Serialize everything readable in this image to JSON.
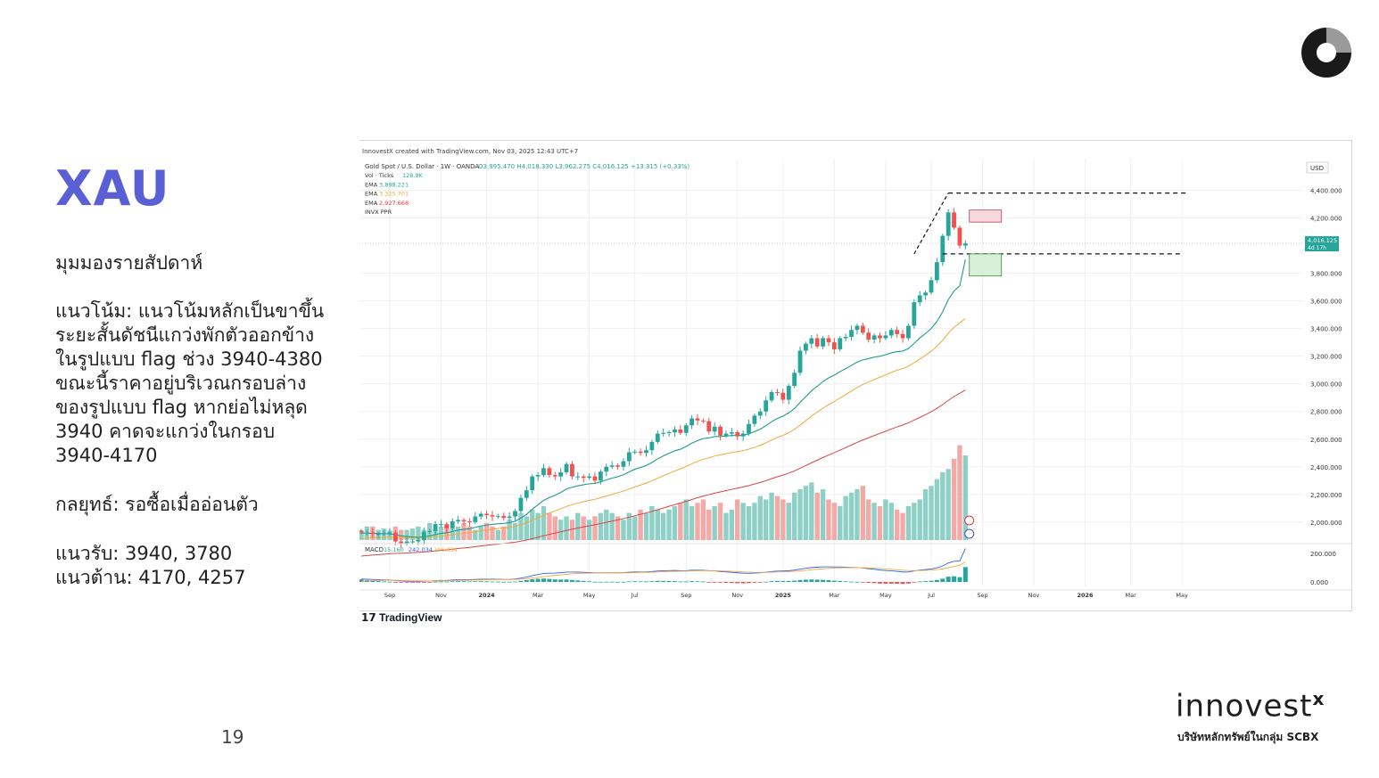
{
  "slide": {
    "title": "XAU",
    "subtitle": "มุมมองรายสัปดาห์",
    "trend_lines": [
      "แนวโน้ม: แนวโน้มหลักเป็นขาขึ้น",
      "ระยะสั้นดัชนีแกว่งพักตัวออกข้าง",
      "ในรูปแบบ flag ช่วง 3940-4380",
      "ขณะนี้ราคาอยู่บริเวณกรอบล่าง",
      "ของรูปแบบ flag หากย่อไม่หลุด",
      "3940 คาดจะแกว่งในกรอบ",
      "3940-4170"
    ],
    "strategy": "กลยุทธ์: รอซื้อเมื่ออ่อนตัว",
    "support": "แนวรับ: 3940, 3780",
    "resistance": "แนวต้าน: 4170, 4257",
    "page_number": "19",
    "brand_name": "innovest",
    "brand_x": "x",
    "brand_sub": "บริษัทหลักทรัพย์ในกลุ่ม SCBX"
  },
  "chart_data": {
    "type": "candlestick",
    "header": "InnovestX created with TradingView.com, Nov 03, 2025 12:43 UTC+7",
    "symbol_line": {
      "name": "Gold Spot / U.S. Dollar · 1W · OANDA",
      "ohlc": "O3,995.470 H4,018.330 L3,962.275 C4,016.125 +13.315 (+0.33%)"
    },
    "legend": [
      {
        "label": "Vol · Ticks",
        "value": "128.9K",
        "color": "#26a69a"
      },
      {
        "label": "EMA",
        "value": "3,898.221",
        "color": "#26a69a"
      },
      {
        "label": "EMA",
        "value": "3,325.701",
        "color": "#f2a93b"
      },
      {
        "label": "EMA",
        "value": "2,927.668",
        "color": "#e53935"
      },
      {
        "label": "INVX PPR",
        "value": "",
        "color": "#555555"
      }
    ],
    "currency": "USD",
    "price_label": "4,016.125",
    "countdown": "4d 17h",
    "y_ticks": [
      2000,
      2200,
      2400,
      2600,
      2800,
      3000,
      3200,
      3400,
      3600,
      3800,
      4200,
      4400
    ],
    "y_tick_labels": [
      "2,000.000",
      "2,200.000",
      "2,400.000",
      "2,600.000",
      "2,800.000",
      "3,000.000",
      "3,200.000",
      "3,400.000",
      "3,600.000",
      "3,800.000",
      "4,200.000",
      "4,400.000"
    ],
    "ylim": [
      1870,
      4500
    ],
    "x_labels": [
      "Sep",
      "Nov",
      "2024",
      "Mar",
      "May",
      "Jul",
      "Sep",
      "Nov",
      "2025",
      "Mar",
      "May",
      "Jul",
      "Sep",
      "Nov",
      "2026",
      "Mar",
      "May"
    ],
    "x_label_weeks": [
      5,
      14,
      22,
      31,
      40,
      48,
      57,
      66,
      74,
      83,
      92,
      100,
      109,
      118,
      127,
      135,
      144
    ],
    "macd": {
      "label": "MACD",
      "values": [
        "15.160",
        "242.034",
        "206.854"
      ],
      "colors": [
        "#26a69a",
        "#2962ff",
        "#f2a93b"
      ],
      "y_ticks": [
        "200.000",
        "0.000"
      ]
    },
    "closes": [
      1925,
      1925,
      1915,
      1915,
      1920,
      1925,
      1860,
      1845,
      1860,
      1860,
      1870,
      1930,
      1935,
      1985,
      1985,
      1955,
      2005,
      2015,
      2005,
      2000,
      2040,
      2060,
      2050,
      2040,
      2045,
      2030,
      2040,
      2080,
      2175,
      2230,
      2330,
      2340,
      2390,
      2340,
      2330,
      2360,
      2420,
      2330,
      2330,
      2320,
      2330,
      2300,
      2365,
      2400,
      2410,
      2400,
      2440,
      2505,
      2510,
      2500,
      2520,
      2580,
      2640,
      2645,
      2650,
      2670,
      2645,
      2700,
      2750,
      2735,
      2730,
      2655,
      2690,
      2625,
      2640,
      2650,
      2620,
      2640,
      2710,
      2770,
      2800,
      2880,
      2940,
      2935,
      2885,
      2985,
      3080,
      3240,
      3290,
      3330,
      3270,
      3330,
      3300,
      3250,
      3330,
      3340,
      3390,
      3420,
      3370,
      3320,
      3350,
      3330,
      3350,
      3390,
      3360,
      3330,
      3420,
      3590,
      3640,
      3660,
      3750,
      3880,
      4070,
      4240,
      4130,
      4000,
      4016
    ],
    "volume_estimate": [
      15,
      20,
      20,
      15,
      17,
      14,
      20,
      15,
      15,
      17,
      20,
      15,
      25,
      15,
      20,
      23,
      17,
      20,
      25,
      20,
      15,
      20,
      25,
      20,
      15,
      20,
      30,
      25,
      40,
      35,
      45,
      40,
      50,
      40,
      35,
      30,
      35,
      30,
      40,
      35,
      30,
      35,
      40,
      45,
      40,
      35,
      30,
      40,
      35,
      45,
      40,
      50,
      45,
      40,
      45,
      50,
      55,
      60,
      50,
      55,
      60,
      45,
      50,
      55,
      40,
      45,
      60,
      55,
      50,
      55,
      65,
      60,
      70,
      65,
      60,
      55,
      70,
      75,
      80,
      85,
      70,
      75,
      60,
      55,
      50,
      65,
      70,
      75,
      80,
      60,
      55,
      50,
      60,
      55,
      45,
      40,
      50,
      55,
      60,
      75,
      80,
      90,
      100,
      105,
      120,
      140,
      125
    ],
    "ema_fast_estimate": [
      1920,
      1920,
      1918,
      1917,
      1916,
      1916,
      1908,
      1900,
      1896,
      1892,
      1890,
      1895,
      1900,
      1910,
      1918,
      1922,
      1932,
      1942,
      1948,
      1952,
      1962,
      1972,
      1978,
      1983,
      1988,
      1990,
      1996,
      2006,
      2029,
      2056,
      2093,
      2125,
      2157,
      2178,
      2194,
      2214,
      2240,
      2252,
      2262,
      2270,
      2277,
      2280,
      2291,
      2305,
      2318,
      2328,
      2342,
      2363,
      2382,
      2395,
      2410,
      2431,
      2457,
      2478,
      2497,
      2516,
      2527,
      2547,
      2571,
      2589,
      2604,
      2609,
      2619,
      2619,
      2622,
      2626,
      2626,
      2628,
      2638,
      2654,
      2672,
      2697,
      2726,
      2750,
      2767,
      2790,
      2821,
      2866,
      2908,
      2950,
      2982,
      3016,
      3043,
      3063,
      3088,
      3110,
      3133,
      3157,
      3173,
      3182,
      3193,
      3200,
      3210,
      3224,
      3233,
      3237,
      3255,
      3293,
      3331,
      3364,
      3401,
      3451,
      3520,
      3609,
      3672,
      3708,
      3900
    ]
  }
}
